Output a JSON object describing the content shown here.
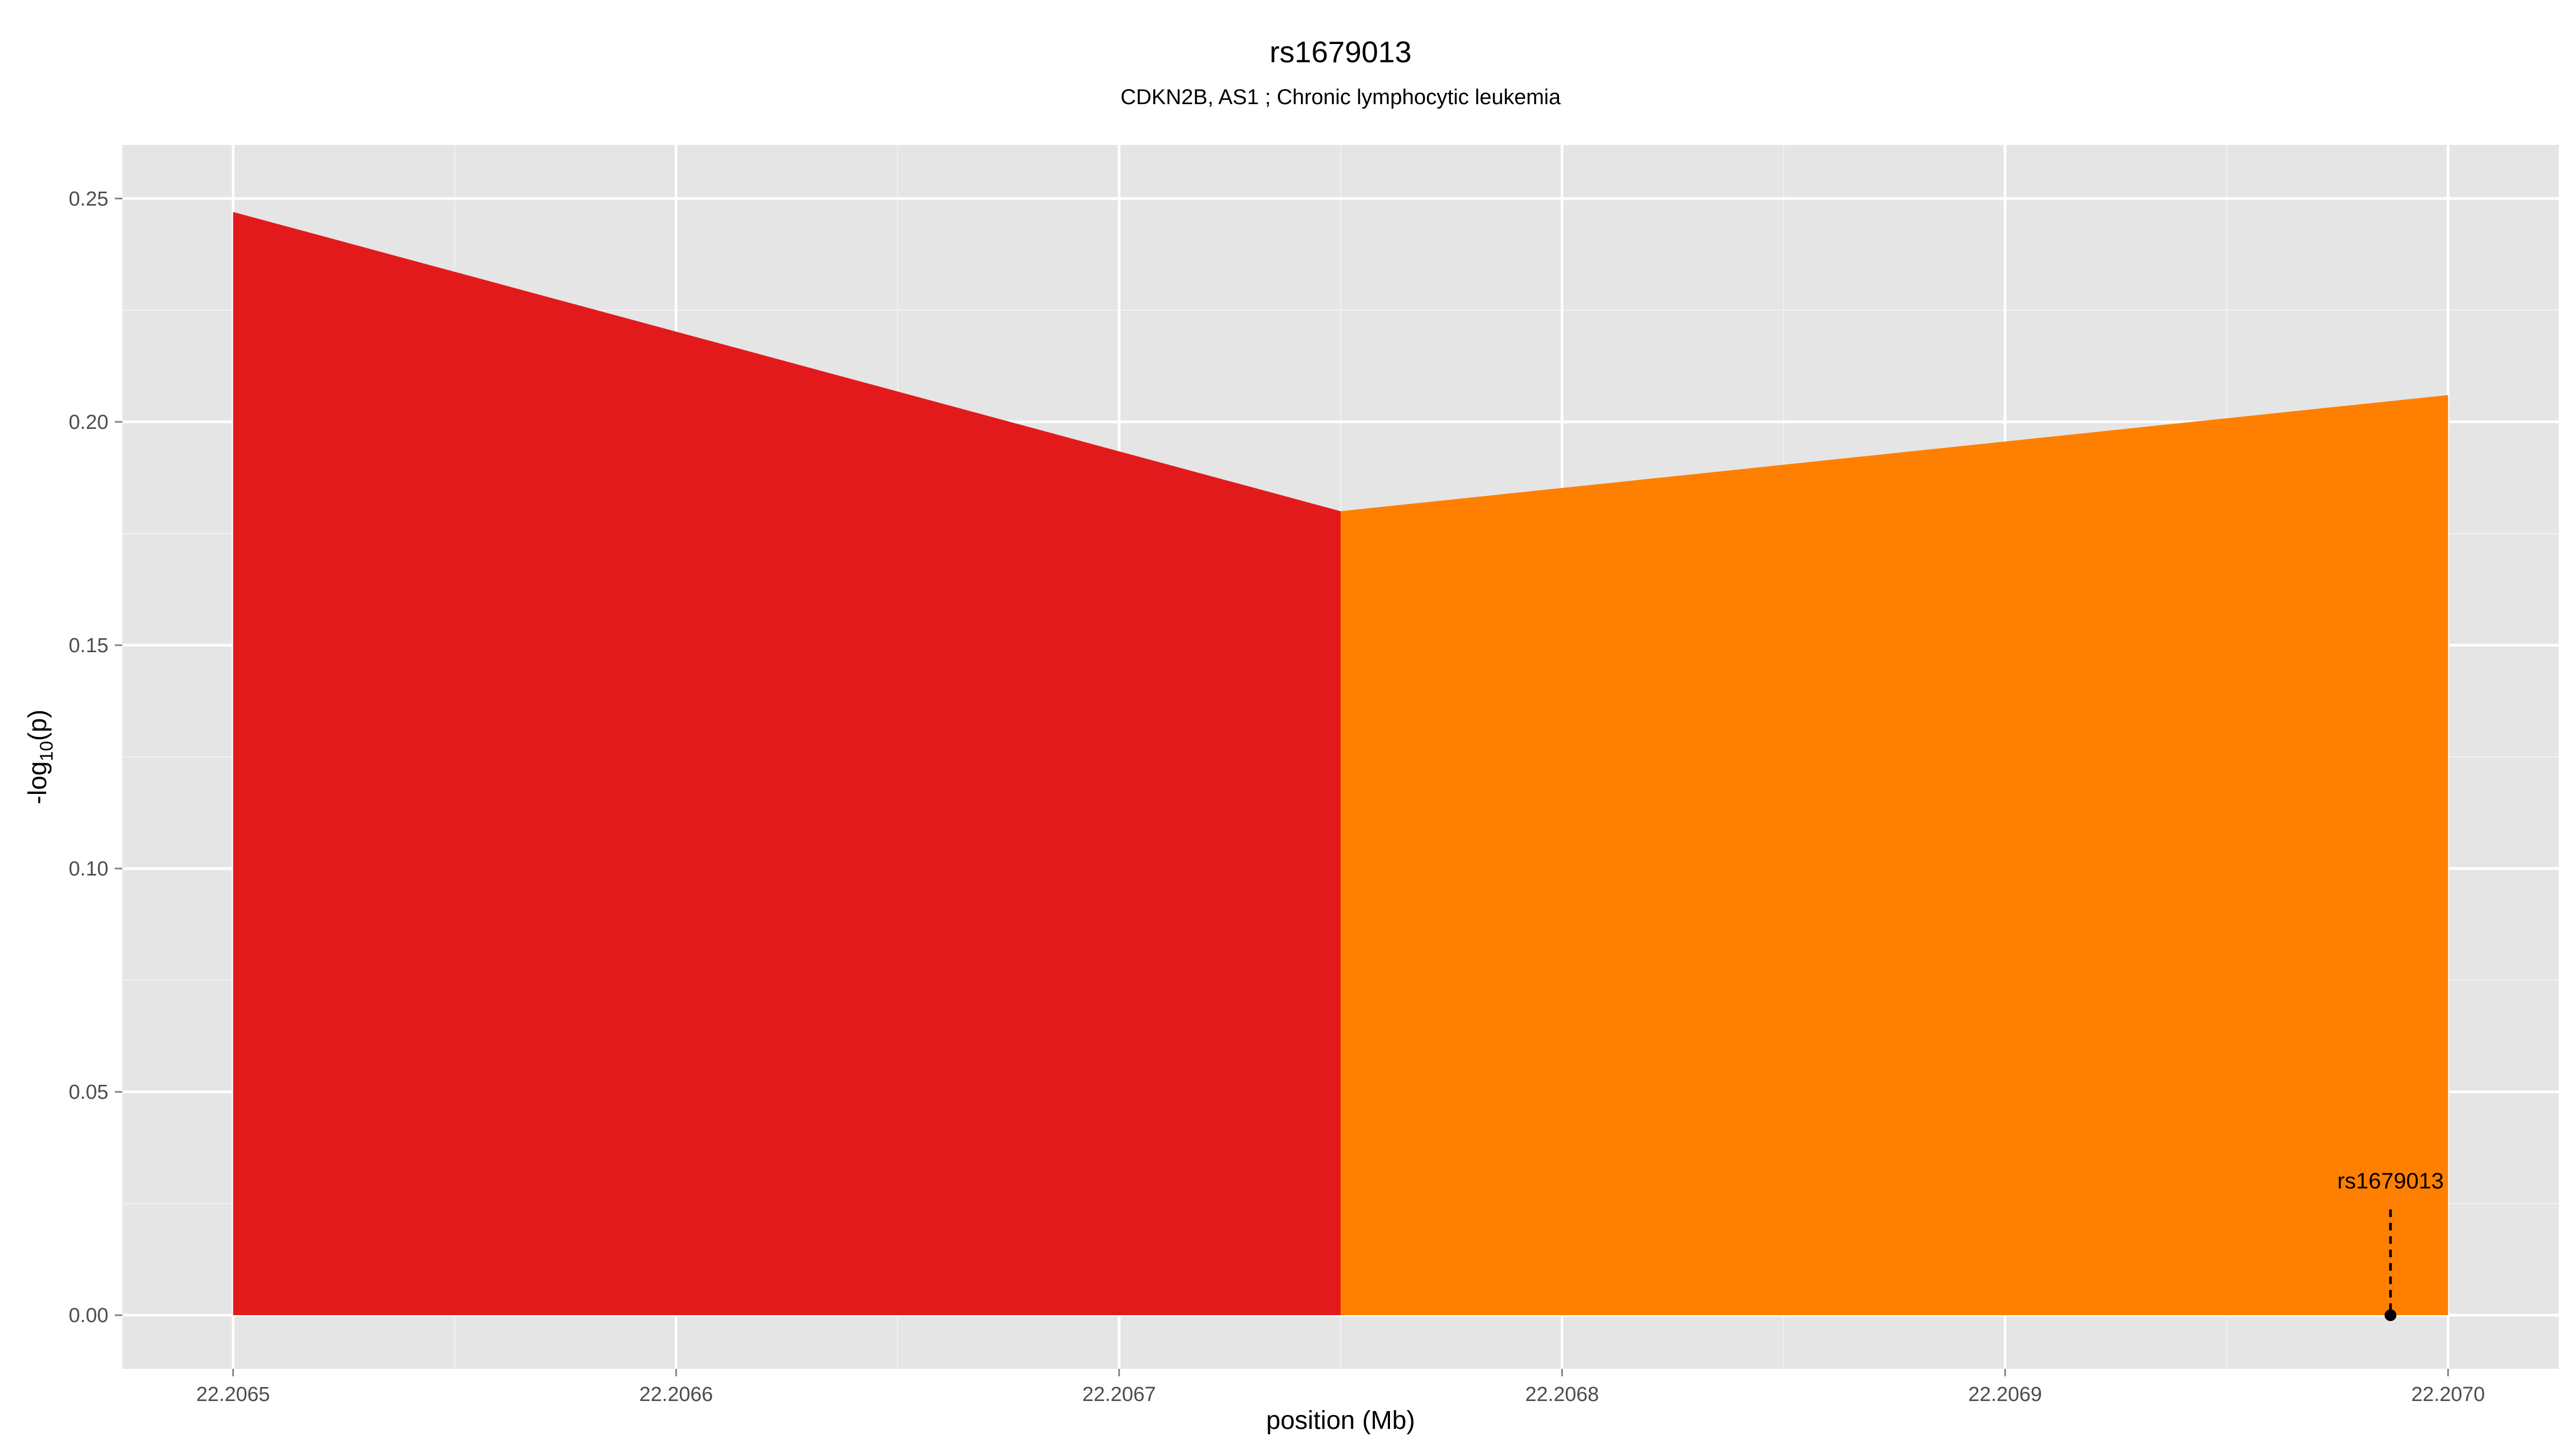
{
  "chart_data": {
    "type": "area",
    "title": "rs1679013",
    "subtitle": "CDKN2B, AS1 ; Chronic lymphocytic leukemia",
    "xlabel": "position (Mb)",
    "ylabel": {
      "prefix": "-log",
      "sub": "10",
      "suffix": "(p)"
    },
    "xlim": [
      22.206475,
      22.207025
    ],
    "ylim": [
      -0.012,
      0.262
    ],
    "x_ticks": [
      {
        "value": 22.2065,
        "label": "22.2065"
      },
      {
        "value": 22.2066,
        "label": "22.2066"
      },
      {
        "value": 22.2067,
        "label": "22.2067"
      },
      {
        "value": 22.2068,
        "label": "22.2068"
      },
      {
        "value": 22.2069,
        "label": "22.2069"
      },
      {
        "value": 22.207,
        "label": "22.2070"
      }
    ],
    "y_ticks": [
      {
        "value": 0.0,
        "label": "0.00"
      },
      {
        "value": 0.05,
        "label": "0.05"
      },
      {
        "value": 0.1,
        "label": "0.10"
      },
      {
        "value": 0.15,
        "label": "0.15"
      },
      {
        "value": 0.2,
        "label": "0.20"
      },
      {
        "value": 0.25,
        "label": "0.25"
      }
    ],
    "grid": true,
    "legend": "none",
    "segments": [
      {
        "x": [
          22.2065,
          22.20675
        ],
        "y": [
          0.247,
          0.18
        ],
        "color": "#e31a1c"
      },
      {
        "x": [
          22.20675,
          22.207
        ],
        "y": [
          0.18,
          0.206
        ],
        "color": "#ff7f00"
      }
    ],
    "annotations": [
      {
        "text": "rs1679013",
        "x": 22.206987,
        "y": 0.0
      }
    ]
  }
}
